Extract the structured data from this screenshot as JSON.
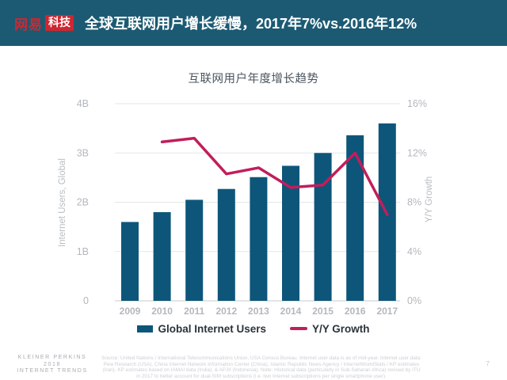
{
  "header": {
    "logo_brand": "网易",
    "logo_badge": "科技",
    "title": "全球互联网用户增长缓慢，2017年7%vs.2016年12%"
  },
  "chart_data": {
    "type": "bar",
    "title": "互联网用户年度增长趋势",
    "categories": [
      "2009",
      "2010",
      "2011",
      "2012",
      "2013",
      "2014",
      "2015",
      "2016",
      "2017"
    ],
    "series": [
      {
        "name": "Global Internet Users",
        "type": "bar",
        "axis": "left",
        "color": "#0d567a",
        "values": [
          1.6,
          1.8,
          2.05,
          2.27,
          2.51,
          2.74,
          3.0,
          3.36,
          3.6
        ]
      },
      {
        "name": "Y/Y Growth",
        "type": "line",
        "axis": "right",
        "color": "#c11e5b",
        "values": [
          null,
          12.9,
          13.2,
          10.3,
          10.8,
          9.2,
          9.4,
          12.0,
          7.0
        ]
      }
    ],
    "left_axis": {
      "title": "Internet Users, Global",
      "min": 0,
      "max": 4,
      "ticks": [
        "0",
        "1B",
        "2B",
        "3B",
        "4B"
      ]
    },
    "right_axis": {
      "title": "Y/Y Growth",
      "min": 0,
      "max": 16,
      "ticks": [
        "0%",
        "4%",
        "8%",
        "12%",
        "16%"
      ]
    },
    "grid": true,
    "legend_position": "bottom"
  },
  "footer": {
    "brand_lines": [
      "KLEINER PERKINS",
      "2018",
      "INTERNET TRENDS"
    ],
    "source": "Source: United Nations / International Telecommunications Union, USA Census Bureau. Internet user data is as of mid-year. Internet user data: Pew Research (USA), China Internet Network Information Center (China), Islamic Republic News Agency / InternetWorldStats / KP estimates (Iran). KP estimates based on IAMAI data (India), & APJII (Indonesia).  Note: Historical data (particularly in Sub-Saharan Africa) revised by ITU in 2017 to better account for dual-SIM subscriptions (i.e. two Internet subscriptions per single smartphone user).",
    "page_number": "7"
  },
  "colors": {
    "header_bg": "#1c5a73",
    "logo_red": "#cf2630",
    "bar": "#0d567a",
    "line": "#c11e5b",
    "gridline": "#e4e6e8",
    "axis_baseline": "#c7cbce",
    "tick_label": "#b3b8bd",
    "axis_title": "#b9bec2"
  }
}
